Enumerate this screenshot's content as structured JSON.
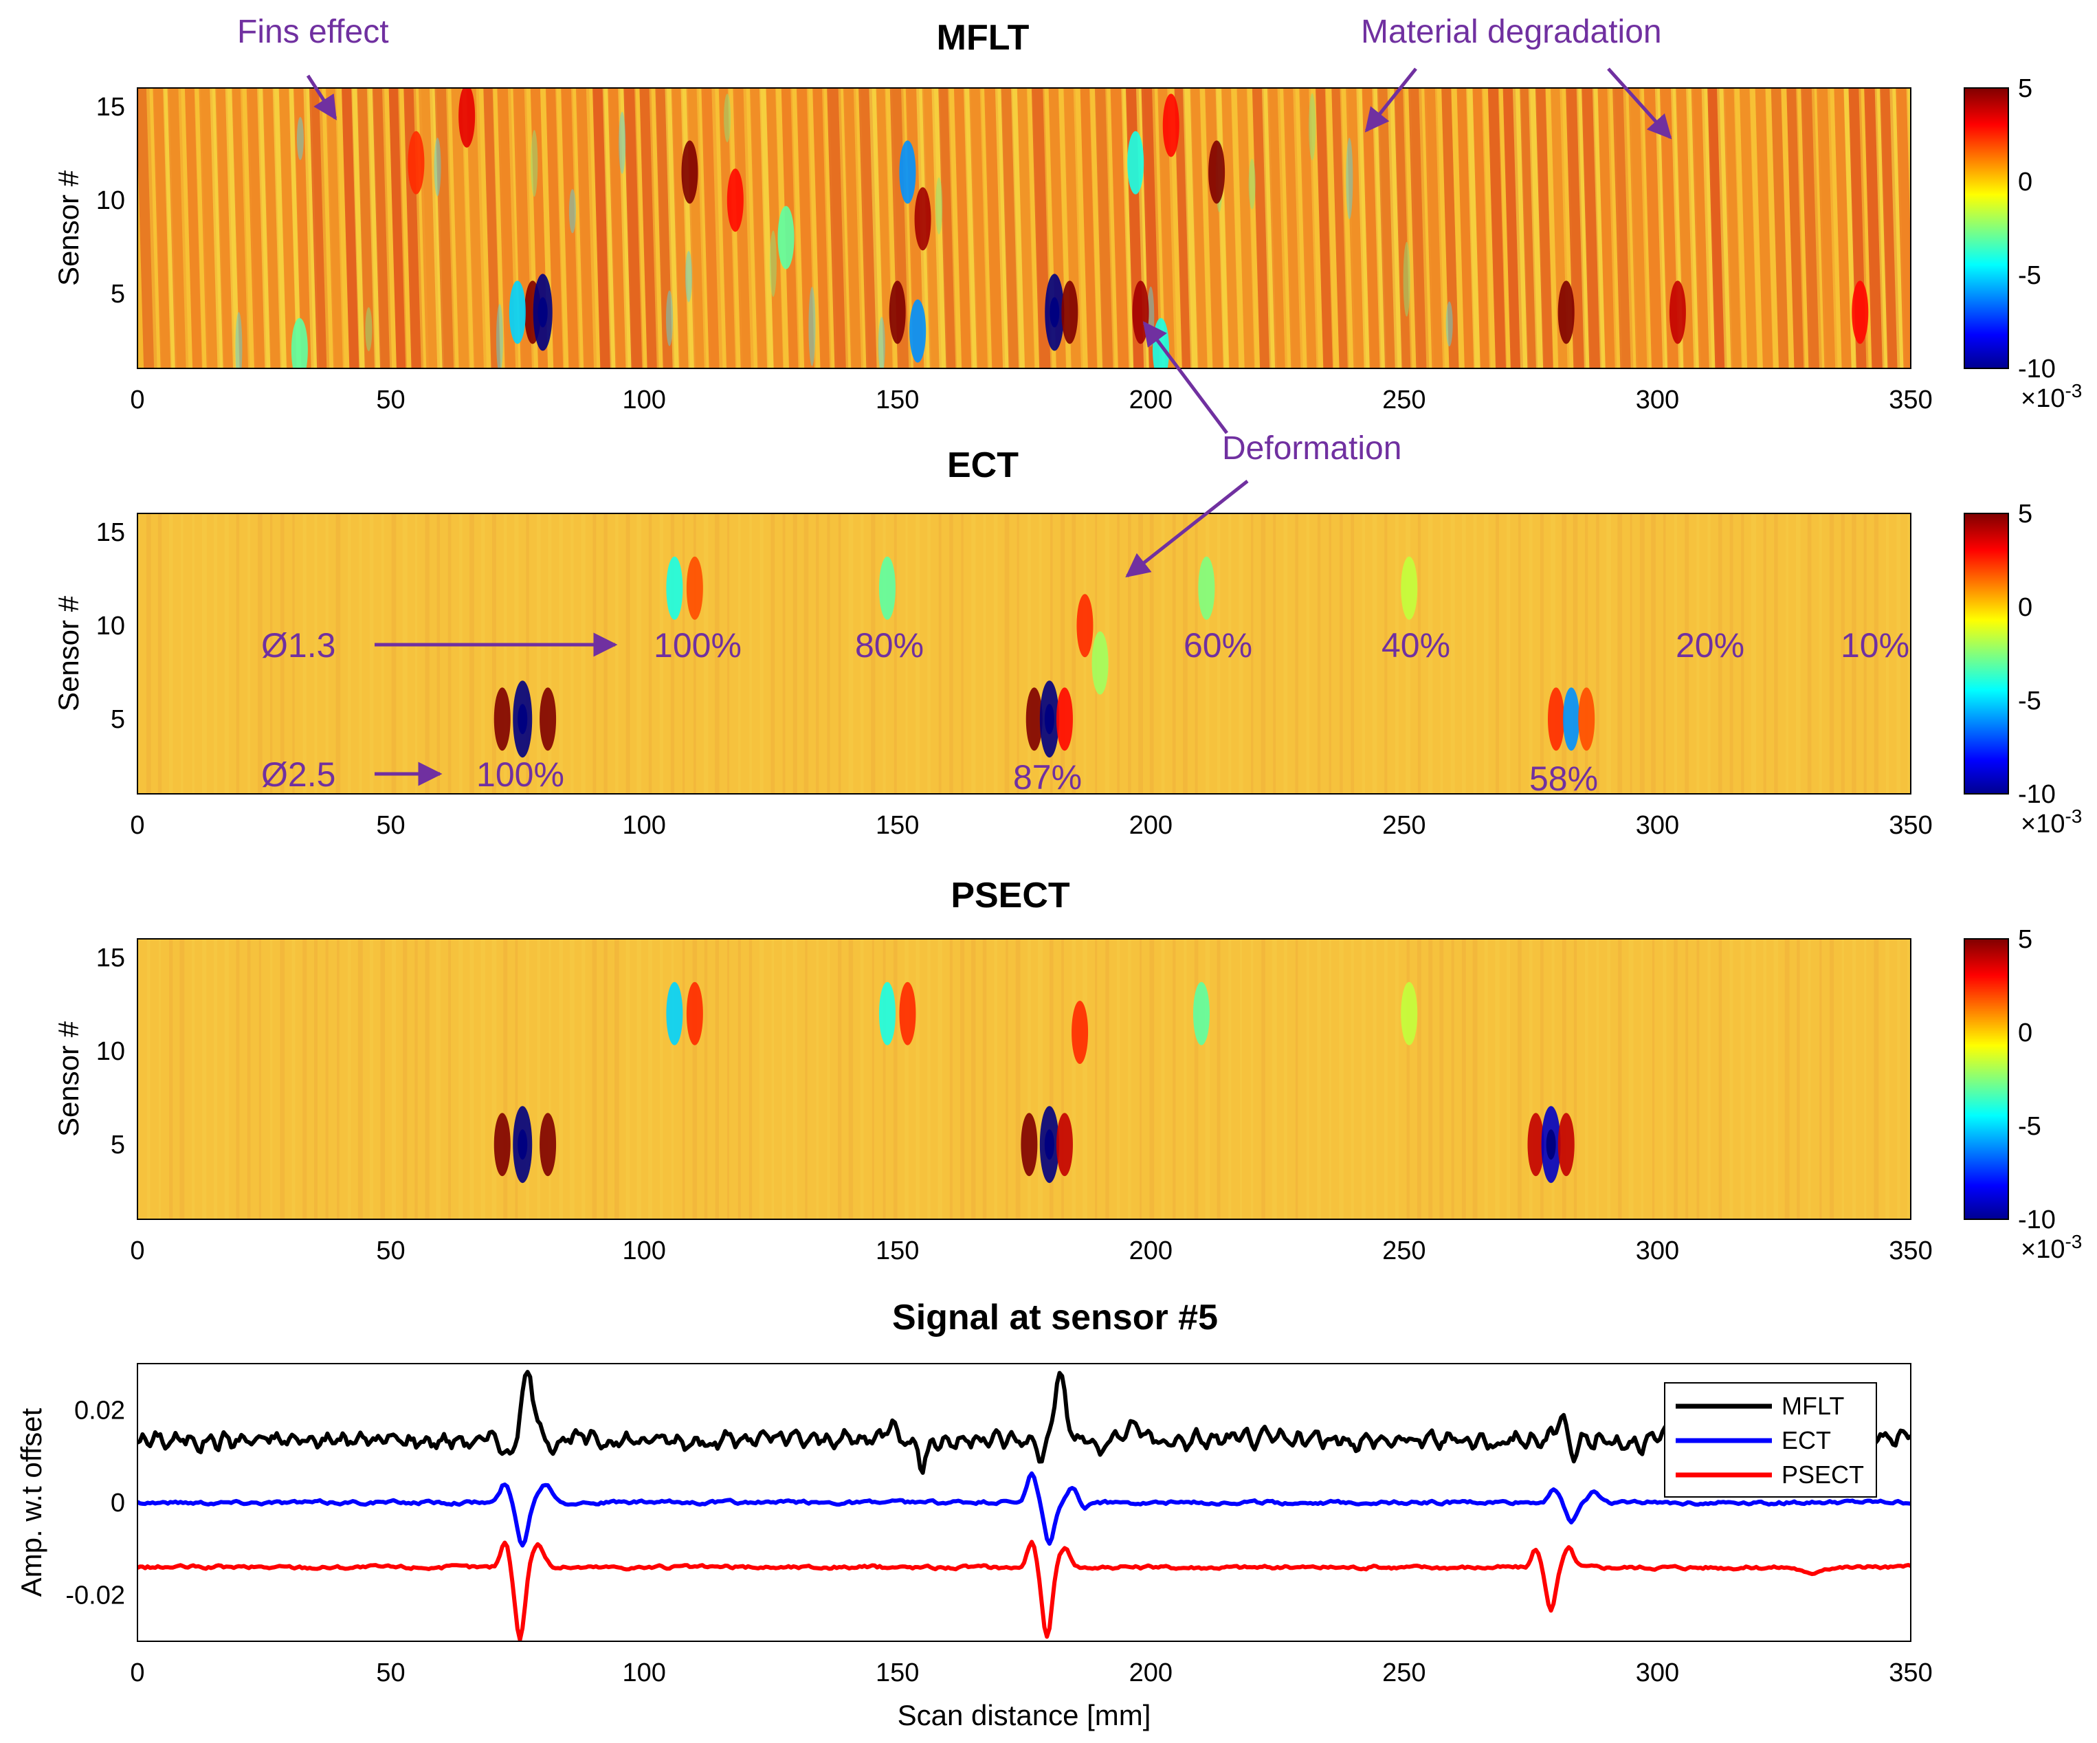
{
  "annotation_color": "#7030a0",
  "chart_data": [
    {
      "type": "heatmap",
      "title": "MFLT",
      "xlabel": "",
      "ylabel": "Sensor #",
      "xlim": [
        0,
        350
      ],
      "ylim": [
        1,
        16
      ],
      "x_ticks": [
        "0",
        "50",
        "100",
        "150",
        "200",
        "250",
        "300",
        "350"
      ],
      "y_ticks": [
        "5",
        "10",
        "15"
      ],
      "colorbar": {
        "ticks": [
          "5",
          "0",
          "-5",
          "-10"
        ],
        "exponent_base": "×10",
        "exponent": "-3",
        "range": [
          -10,
          5
        ]
      },
      "background": "fins",
      "spots": [
        {
          "x": 65,
          "y": 14.5,
          "v": 3.5
        },
        {
          "x": 55,
          "y": 12,
          "v": 2.5
        },
        {
          "x": 109,
          "y": 11.5,
          "v": 5
        },
        {
          "x": 152,
          "y": 11.5,
          "v": -6
        },
        {
          "x": 155,
          "y": 9,
          "v": 4.5
        },
        {
          "x": 197,
          "y": 12,
          "v": -4
        },
        {
          "x": 204,
          "y": 14,
          "v": 3
        },
        {
          "x": 213,
          "y": 11.5,
          "v": 5
        },
        {
          "x": 78,
          "y": 4,
          "v": 5
        },
        {
          "x": 80,
          "y": 4,
          "v": -10
        },
        {
          "x": 75,
          "y": 4,
          "v": -5
        },
        {
          "x": 150,
          "y": 4,
          "v": 5
        },
        {
          "x": 154,
          "y": 3,
          "v": -6
        },
        {
          "x": 181,
          "y": 4,
          "v": -10
        },
        {
          "x": 184,
          "y": 4,
          "v": 5
        },
        {
          "x": 198,
          "y": 4,
          "v": 4.5
        },
        {
          "x": 202,
          "y": 2,
          "v": -4
        },
        {
          "x": 282,
          "y": 4,
          "v": 5
        },
        {
          "x": 304,
          "y": 4,
          "v": 4
        },
        {
          "x": 340,
          "y": 4,
          "v": 3
        },
        {
          "x": 128,
          "y": 8,
          "v": -3
        },
        {
          "x": 32,
          "y": 2,
          "v": -3
        },
        {
          "x": 118,
          "y": 10,
          "v": 3
        }
      ],
      "annotations": [
        {
          "text": "Fins effect",
          "x": 38,
          "y": 15
        },
        {
          "text": "Material degradation",
          "x": 242,
          "y": 13.5
        },
        {
          "text": "Material degradation",
          "x": 302,
          "y": 13
        },
        {
          "text": "Deformation",
          "x": 198,
          "y": 3
        }
      ]
    },
    {
      "type": "heatmap",
      "title": "ECT",
      "xlabel": "",
      "ylabel": "Sensor #",
      "xlim": [
        0,
        350
      ],
      "ylim": [
        1,
        16
      ],
      "x_ticks": [
        "0",
        "50",
        "100",
        "150",
        "200",
        "250",
        "300",
        "350"
      ],
      "y_ticks": [
        "5",
        "10",
        "15"
      ],
      "colorbar": {
        "ticks": [
          "5",
          "0",
          "-5",
          "-10"
        ],
        "exponent_base": "×10",
        "exponent": "-3",
        "range": [
          -10,
          5
        ]
      },
      "background": "smooth",
      "spots": [
        {
          "x": 72,
          "y": 5,
          "v": 5
        },
        {
          "x": 76,
          "y": 5,
          "v": -10
        },
        {
          "x": 81,
          "y": 5,
          "v": 5
        },
        {
          "x": 177,
          "y": 5,
          "v": 5
        },
        {
          "x": 180,
          "y": 5,
          "v": -10
        },
        {
          "x": 183,
          "y": 5,
          "v": 3
        },
        {
          "x": 280,
          "y": 5,
          "v": 2.5
        },
        {
          "x": 283,
          "y": 5,
          "v": -6
        },
        {
          "x": 286,
          "y": 5,
          "v": 2
        },
        {
          "x": 106,
          "y": 12,
          "v": -4
        },
        {
          "x": 110,
          "y": 12,
          "v": 2
        },
        {
          "x": 148,
          "y": 12,
          "v": -3
        },
        {
          "x": 211,
          "y": 12,
          "v": -2.5
        },
        {
          "x": 251,
          "y": 12,
          "v": -1.5
        },
        {
          "x": 187,
          "y": 10,
          "v": 2.5
        },
        {
          "x": 190,
          "y": 8,
          "v": -2
        }
      ],
      "labels_top": {
        "prefix": "Ø1.3",
        "items": [
          "100%",
          "80%",
          "60%",
          "40%",
          "20%",
          "10%"
        ]
      },
      "labels_bottom": {
        "prefix": "Ø2.5",
        "items": [
          "100%",
          "87%",
          "58%"
        ]
      }
    },
    {
      "type": "heatmap",
      "title": "PSECT",
      "xlabel": "",
      "ylabel": "Sensor #",
      "xlim": [
        0,
        350
      ],
      "ylim": [
        1,
        16
      ],
      "x_ticks": [
        "0",
        "50",
        "100",
        "150",
        "200",
        "250",
        "300",
        "350"
      ],
      "y_ticks": [
        "5",
        "10",
        "15"
      ],
      "colorbar": {
        "ticks": [
          "5",
          "0",
          "-5",
          "-10"
        ],
        "exponent_base": "×10",
        "exponent": "-3",
        "range": [
          -10,
          5
        ]
      },
      "background": "smooth",
      "spots": [
        {
          "x": 72,
          "y": 5,
          "v": 5
        },
        {
          "x": 76,
          "y": 5,
          "v": -10
        },
        {
          "x": 81,
          "y": 5,
          "v": 5
        },
        {
          "x": 176,
          "y": 5,
          "v": 5
        },
        {
          "x": 180,
          "y": 5,
          "v": -10
        },
        {
          "x": 183,
          "y": 5,
          "v": 4
        },
        {
          "x": 276,
          "y": 5,
          "v": 4
        },
        {
          "x": 279,
          "y": 5,
          "v": -9
        },
        {
          "x": 282,
          "y": 5,
          "v": 4
        },
        {
          "x": 106,
          "y": 12,
          "v": -5
        },
        {
          "x": 110,
          "y": 12,
          "v": 2.5
        },
        {
          "x": 148,
          "y": 12,
          "v": -4
        },
        {
          "x": 152,
          "y": 12,
          "v": 2.5
        },
        {
          "x": 210,
          "y": 12,
          "v": -3
        },
        {
          "x": 251,
          "y": 12,
          "v": -1.5
        },
        {
          "x": 186,
          "y": 11,
          "v": 2.5
        }
      ]
    },
    {
      "type": "line",
      "title": "Signal at sensor #5",
      "xlabel": "Scan distance [mm]",
      "ylabel": "Amp. w.t offset",
      "xlim": [
        0,
        350
      ],
      "ylim": [
        -0.03,
        0.03
      ],
      "x_ticks": [
        "0",
        "50",
        "100",
        "150",
        "200",
        "250",
        "300",
        "350"
      ],
      "y_ticks": [
        "0.02",
        "0",
        "-0.02"
      ],
      "legend": "top-right",
      "series": [
        {
          "name": "MFLT",
          "color": "#000000",
          "baseline": 0.0135,
          "features": [
            {
              "x": 77,
              "a": 0.0135,
              "w": 1.8
            },
            {
              "x": 73.5,
              "a": -0.004,
              "w": 1.2
            },
            {
              "x": 182,
              "a": 0.0145,
              "w": 1.6
            },
            {
              "x": 178.5,
              "a": -0.004,
              "w": 1.2
            },
            {
              "x": 155,
              "a": -0.0055,
              "w": 1.2
            },
            {
              "x": 149,
              "a": 0.005,
              "w": 1.5
            },
            {
              "x": 197,
              "a": 0.0045,
              "w": 1.3
            },
            {
              "x": 190,
              "a": -0.003,
              "w": 1.0
            },
            {
              "x": 281,
              "a": 0.006,
              "w": 1.3
            },
            {
              "x": 283.5,
              "a": -0.003,
              "w": 1.0
            }
          ]
        },
        {
          "name": "ECT",
          "color": "#0000ff",
          "baseline": 0.0,
          "features": [
            {
              "x": 72.5,
              "a": 0.004,
              "w": 1.3
            },
            {
              "x": 76,
              "a": -0.009,
              "w": 1.5
            },
            {
              "x": 80.5,
              "a": 0.004,
              "w": 2.0
            },
            {
              "x": 176.5,
              "a": 0.006,
              "w": 1.3
            },
            {
              "x": 180,
              "a": -0.009,
              "w": 1.4
            },
            {
              "x": 184.5,
              "a": 0.003,
              "w": 1.5
            },
            {
              "x": 279.5,
              "a": 0.003,
              "w": 1.3
            },
            {
              "x": 283,
              "a": -0.0045,
              "w": 1.3
            },
            {
              "x": 287.5,
              "a": 0.0025,
              "w": 1.4
            },
            {
              "x": 187,
              "a": -0.0015,
              "w": 1.0
            }
          ]
        },
        {
          "name": "PSECT",
          "color": "#ff0000",
          "baseline": -0.014,
          "features": [
            {
              "x": 72.5,
              "a": 0.0055,
              "w": 1.2
            },
            {
              "x": 75.5,
              "a": -0.0155,
              "w": 1.3
            },
            {
              "x": 79,
              "a": 0.005,
              "w": 1.7
            },
            {
              "x": 176.5,
              "a": 0.0055,
              "w": 1.2
            },
            {
              "x": 179.5,
              "a": -0.0155,
              "w": 1.3
            },
            {
              "x": 183,
              "a": 0.004,
              "w": 1.6
            },
            {
              "x": 276,
              "a": 0.004,
              "w": 1.1
            },
            {
              "x": 279,
              "a": -0.009,
              "w": 1.3
            },
            {
              "x": 282.5,
              "a": 0.004,
              "w": 1.4
            },
            {
              "x": 330,
              "a": -0.0015,
              "w": 2.0
            }
          ]
        }
      ]
    }
  ]
}
